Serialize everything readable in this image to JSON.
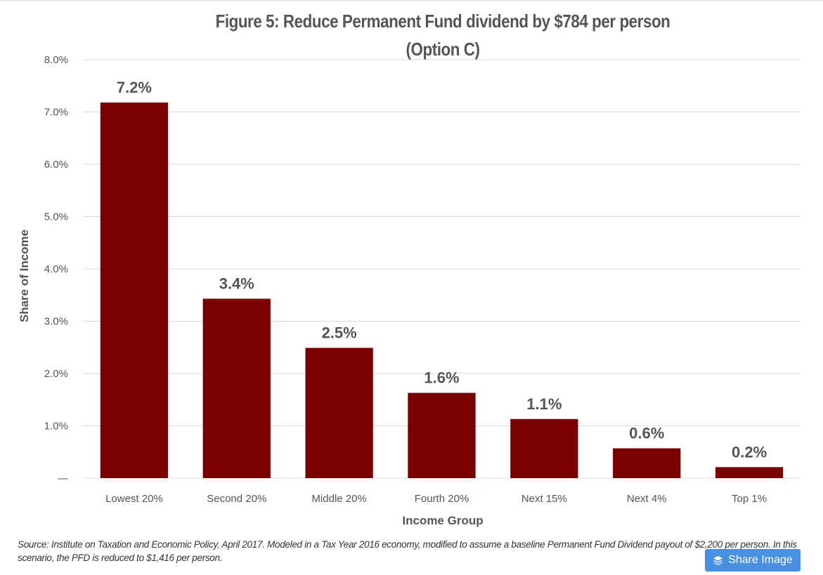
{
  "chart_data": {
    "type": "bar",
    "title": "Figure 5: Reduce Permanent Fund dividend by $784 per person",
    "subtitle": "(Option C)",
    "xlabel": "Income Group",
    "ylabel": "Share of Income",
    "categories": [
      "Lowest 20%",
      "Second 20%",
      "Middle 20%",
      "Fourth 20%",
      "Next 15%",
      "Next 4%",
      "Top 1%"
    ],
    "values": [
      7.2,
      3.4,
      2.5,
      1.6,
      1.1,
      0.6,
      0.2
    ],
    "plotted_values": [
      7.18,
      3.43,
      2.49,
      1.63,
      1.13,
      0.57,
      0.21
    ],
    "data_labels": [
      "7.2%",
      "3.4%",
      "2.5%",
      "1.6%",
      "1.1%",
      "0.6%",
      "0.2%"
    ],
    "yticks": [
      0,
      1,
      2,
      3,
      4,
      5,
      6,
      7,
      8
    ],
    "ytick_labels": [
      "—",
      "1.0%",
      "2.0%",
      "3.0%",
      "4.0%",
      "5.0%",
      "6.0%",
      "7.0%",
      "8.0%"
    ],
    "ylim": [
      0,
      8
    ],
    "grid": true,
    "legend": "none",
    "bar_color": "#7b0000",
    "gridline_color": "#d9d9d9"
  },
  "source_note": "Source: Institute on Taxation and Economic Policy, April 2017.  Modeled in a Tax Year 2016 economy, modified to assume a baseline Permanent Fund Dividend payout of $2,200 per person. In this scenario, the PFD is reduced to $1,416 per person.",
  "share_button": {
    "label": "Share Image",
    "icon": "layers-icon",
    "color": "#4a90e2"
  }
}
